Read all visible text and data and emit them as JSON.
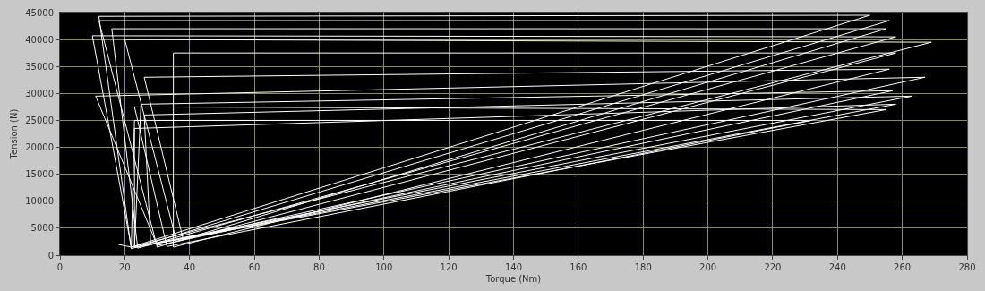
{
  "chart_data": {
    "type": "line",
    "xlabel": "Torque (Nm)",
    "ylabel": "Tension (N)",
    "xlim": [
      0,
      280
    ],
    "xticks": [
      0,
      20,
      40,
      60,
      80,
      100,
      120,
      140,
      160,
      180,
      200,
      220,
      240,
      260,
      280
    ],
    "ylim": [
      0,
      45000
    ],
    "yticks": [
      0,
      5000,
      10000,
      15000,
      20000,
      25000,
      30000,
      35000,
      40000,
      45000
    ],
    "grid": true,
    "marker": "none",
    "line_style": "solid",
    "series": [
      {
        "color": "#ffffff",
        "x": [
          18,
          22,
          250,
          12,
          22,
          256,
          12,
          30,
          255,
          16,
          24,
          258,
          10,
          22,
          269,
          20,
          36,
          258,
          35,
          35,
          256,
          26,
          38,
          267,
          11,
          30,
          257,
          25,
          23,
          263,
          26,
          28,
          258,
          23,
          23,
          255,
          23,
          33,
          232,
          23,
          22
        ],
        "values": [
          2000,
          1500,
          44500,
          44300,
          1200,
          43500,
          43500,
          1500,
          42000,
          42000,
          1300,
          40500,
          40700,
          1500,
          39500,
          40000,
          2500,
          37500,
          37500,
          1500,
          34500,
          33000,
          3000,
          33000,
          29500,
          1800,
          30500,
          28000,
          1500,
          29500,
          26000,
          2000,
          28000,
          23500,
          1400,
          27000,
          27500,
          1600,
          25000,
          25000,
          1300
        ]
      }
    ]
  }
}
